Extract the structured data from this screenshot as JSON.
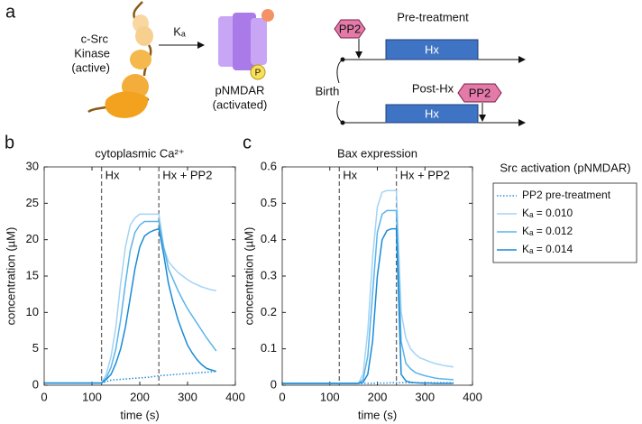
{
  "panel_a": {
    "label": "a",
    "kinase_label": [
      "c-Src",
      "Kinase",
      "(active)"
    ],
    "rate": "Kₐ",
    "receptor_label": [
      "pNMDAR",
      "(activated)"
    ],
    "phospho": "P",
    "birth": "Birth",
    "pre": {
      "drug": "PP2",
      "title": "Pre-treatment",
      "hx": "Hx"
    },
    "post": {
      "drug": "PP2",
      "title": "Post-Hx",
      "hx": "Hx"
    }
  },
  "chart_data": [
    {
      "type": "line",
      "panel": "b",
      "title": "cytoplasmic Ca²⁺",
      "xlabel": "time (s)",
      "ylabel": "concentration (µM)",
      "xlim": [
        0,
        400
      ],
      "ylim": [
        0,
        30
      ],
      "xticks": [
        0,
        100,
        200,
        300,
        400
      ],
      "yticks": [
        0,
        5,
        10,
        15,
        20,
        25,
        30
      ],
      "vlines": [
        120,
        240
      ],
      "annotations": [
        "Hx",
        "Hx + PP2"
      ],
      "x": [
        0,
        10,
        20,
        30,
        40,
        50,
        60,
        70,
        80,
        90,
        100,
        110,
        120,
        130,
        140,
        150,
        160,
        170,
        180,
        190,
        200,
        210,
        220,
        230,
        240,
        250,
        260,
        270,
        280,
        290,
        300,
        310,
        320,
        330,
        340,
        350,
        360
      ],
      "series": [
        {
          "color": "#2a8fd6",
          "dash": "dotted",
          "values": [
            0.3,
            0.3,
            0.3,
            0.3,
            0.3,
            0.3,
            0.3,
            0.3,
            0.3,
            0.3,
            0.3,
            0.3,
            0.3,
            0.5,
            0.7,
            0.75,
            0.8,
            0.85,
            0.9,
            0.95,
            1.0,
            1.05,
            1.1,
            1.2,
            1.3,
            1.35,
            1.4,
            1.45,
            1.5,
            1.55,
            1.6,
            1.65,
            1.7,
            1.75,
            1.8,
            1.85,
            1.9
          ]
        },
        {
          "color": "#a3d3f5",
          "dash": "solid",
          "values": [
            0.3,
            0.3,
            0.3,
            0.3,
            0.3,
            0.3,
            0.3,
            0.3,
            0.3,
            0.3,
            0.3,
            0.3,
            0.3,
            1.5,
            4,
            8,
            14,
            19,
            22,
            23,
            23.5,
            23.5,
            23.5,
            23.5,
            23.5,
            19,
            17,
            16.2,
            15.5,
            15,
            14.5,
            14.1,
            13.8,
            13.5,
            13.3,
            13.1,
            13
          ]
        },
        {
          "color": "#5ab4ea",
          "dash": "solid",
          "values": [
            0.3,
            0.3,
            0.3,
            0.3,
            0.3,
            0.3,
            0.3,
            0.3,
            0.3,
            0.3,
            0.3,
            0.3,
            0.3,
            1,
            2.5,
            5,
            9,
            14,
            18.5,
            21,
            22,
            22.5,
            22.5,
            22.5,
            22.5,
            19,
            16,
            14.5,
            13,
            11.7,
            10.5,
            9.5,
            8.5,
            7.5,
            6.5,
            5.6,
            4.7
          ]
        },
        {
          "color": "#1a8ad4",
          "dash": "solid",
          "values": [
            0.3,
            0.3,
            0.3,
            0.3,
            0.3,
            0.3,
            0.3,
            0.3,
            0.3,
            0.3,
            0.3,
            0.3,
            0.3,
            0.8,
            1.5,
            3,
            5,
            8,
            12,
            16,
            19,
            20.5,
            21,
            21.3,
            21.5,
            18,
            14,
            11.3,
            9,
            7.2,
            5.5,
            4.4,
            3.5,
            2.8,
            2.3,
            2.1,
            1.9
          ]
        }
      ]
    },
    {
      "type": "line",
      "panel": "c",
      "title": "Bax expression",
      "xlabel": "time (s)",
      "ylabel": "concentration (µM)",
      "xlim": [
        0,
        400
      ],
      "ylim": [
        0,
        0.6
      ],
      "xticks": [
        0,
        100,
        200,
        300,
        400
      ],
      "yticks": [
        0,
        0.1,
        0.2,
        0.3,
        0.4,
        0.5,
        0.6
      ],
      "vlines": [
        120,
        240
      ],
      "annotations": [
        "Hx",
        "Hx + PP2"
      ],
      "legend_title": "Src activation (pNMDAR)",
      "legend": "outside right",
      "x": [
        0,
        10,
        20,
        30,
        40,
        50,
        60,
        70,
        80,
        90,
        100,
        110,
        120,
        130,
        140,
        150,
        160,
        170,
        180,
        190,
        200,
        210,
        220,
        230,
        240,
        250,
        260,
        270,
        280,
        290,
        300,
        310,
        320,
        330,
        340,
        350,
        360
      ],
      "series": [
        {
          "name": "PP2 pre-treatment",
          "color": "#2a8fd6",
          "dash": "dotted",
          "values": [
            0.005,
            0.005,
            0.005,
            0.005,
            0.005,
            0.005,
            0.005,
            0.005,
            0.005,
            0.005,
            0.005,
            0.005,
            0.005,
            0.005,
            0.005,
            0.005,
            0.005,
            0.005,
            0.005,
            0.005,
            0.006,
            0.006,
            0.006,
            0.007,
            0.007,
            0.007,
            0.007,
            0.007,
            0.007,
            0.007,
            0.007,
            0.007,
            0.007,
            0.007,
            0.007,
            0.007,
            0.007
          ]
        },
        {
          "name": "Kₐ = 0.010",
          "color": "#a3d3f5",
          "dash": "solid",
          "values": [
            0.005,
            0.005,
            0.005,
            0.005,
            0.005,
            0.005,
            0.005,
            0.005,
            0.005,
            0.005,
            0.005,
            0.005,
            0.005,
            0.005,
            0.005,
            0.005,
            0.005,
            0.03,
            0.15,
            0.35,
            0.49,
            0.53,
            0.535,
            0.535,
            0.535,
            0.2,
            0.13,
            0.1,
            0.085,
            0.075,
            0.07,
            0.065,
            0.06,
            0.057,
            0.054,
            0.052,
            0.05
          ]
        },
        {
          "name": "Kₐ = 0.012",
          "color": "#5ab4ea",
          "dash": "solid",
          "values": [
            0.005,
            0.005,
            0.005,
            0.005,
            0.005,
            0.005,
            0.005,
            0.005,
            0.005,
            0.005,
            0.005,
            0.005,
            0.005,
            0.005,
            0.005,
            0.005,
            0.005,
            0.015,
            0.08,
            0.25,
            0.42,
            0.47,
            0.48,
            0.48,
            0.48,
            0.12,
            0.06,
            0.045,
            0.035,
            0.03,
            0.026,
            0.023,
            0.02,
            0.018,
            0.017,
            0.016,
            0.015
          ]
        },
        {
          "name": "Kₐ = 0.014",
          "color": "#1a8ad4",
          "dash": "solid",
          "values": [
            0.005,
            0.005,
            0.005,
            0.005,
            0.005,
            0.005,
            0.005,
            0.005,
            0.005,
            0.005,
            0.005,
            0.005,
            0.005,
            0.005,
            0.005,
            0.005,
            0.005,
            0.008,
            0.03,
            0.12,
            0.3,
            0.4,
            0.425,
            0.43,
            0.43,
            0.03,
            0.012,
            0.008,
            0.007,
            0.006,
            0.006,
            0.006,
            0.005,
            0.005,
            0.005,
            0.005,
            0.005
          ]
        }
      ]
    }
  ]
}
